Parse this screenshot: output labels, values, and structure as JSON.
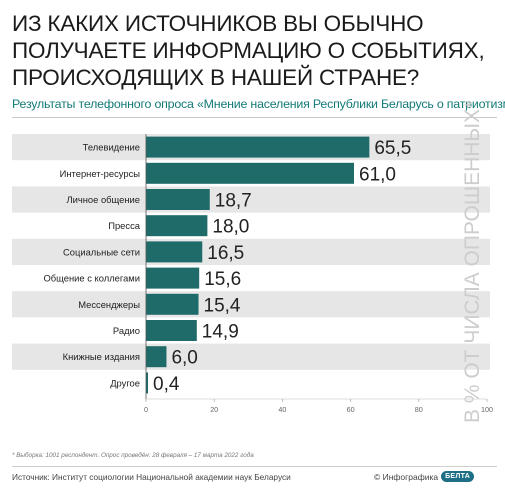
{
  "title": "ИЗ КАКИХ ИСТОЧНИКОВ ВЫ ОБЫЧНО ПОЛУЧАЕТЕ ИНФОРМАЦИЮ О СОБЫТИЯХ, ПРОИСХОДЯЩИХ В НАШЕЙ СТРАНЕ?",
  "subtitle": "Результаты телефонного опроса «Мнение населения Республики Беларусь о патриотизме»",
  "vertical_label": "В % ОТ ЧИСЛА ОПРОШЕННЫХ*",
  "footnote": "* Выборка: 1001 респондент. Опрос проведён: 28 февраля – 17 марта 2022 года",
  "source": "Источник: Институт социологии Национальной академии наук Беларуси",
  "credit": "© Инфографика",
  "logo_text": "БЕЛТА",
  "colors": {
    "bar": "#1e6b6a",
    "stripe": "#e6e6e6",
    "subtitle": "#137a78",
    "value": "#222222"
  },
  "chart_data": {
    "type": "bar",
    "orientation": "horizontal",
    "categories": [
      "Телевидение",
      "Интернет-ресурсы",
      "Личное общение",
      "Пресса",
      "Социальные сети",
      "Общение с коллегами",
      "Мессенджеры",
      "Радио",
      "Книжные издания",
      "Другое"
    ],
    "values": [
      65.5,
      61.0,
      18.7,
      18.0,
      16.5,
      15.6,
      15.4,
      14.9,
      6.0,
      0.4
    ],
    "value_labels": [
      "65,5",
      "61,0",
      "18,7",
      "18,0",
      "16,5",
      "15,6",
      "15,4",
      "14,9",
      "6,0",
      "0,4"
    ],
    "xlim": [
      0,
      100
    ],
    "xticks": [
      0,
      20,
      40,
      60,
      80,
      100
    ],
    "xtick_labels": [
      "0",
      "20",
      "40",
      "60",
      "80",
      "100"
    ],
    "grid": false,
    "legend": "none"
  }
}
